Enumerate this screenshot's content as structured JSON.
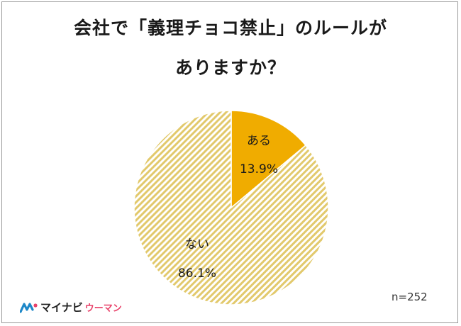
{
  "title": {
    "line1": "会社で「義理チョコ禁止」のルールが",
    "line2": "ありますか？"
  },
  "chart_data": {
    "type": "pie",
    "slices": [
      {
        "label": "ある",
        "value": 13.9,
        "value_text": "13.9%",
        "color": "#f0ac00",
        "pattern": "solid"
      },
      {
        "label": "ない",
        "value": 86.1,
        "value_text": "86.1%",
        "color": "#e2c96c",
        "pattern": "diagonal-hatch"
      }
    ],
    "start_angle_deg": 0,
    "direction": "clockwise"
  },
  "sample_size": "n=252",
  "logo": {
    "main": "マイナビ",
    "sub": "ウーマン",
    "brand_color": "#e8426a"
  }
}
